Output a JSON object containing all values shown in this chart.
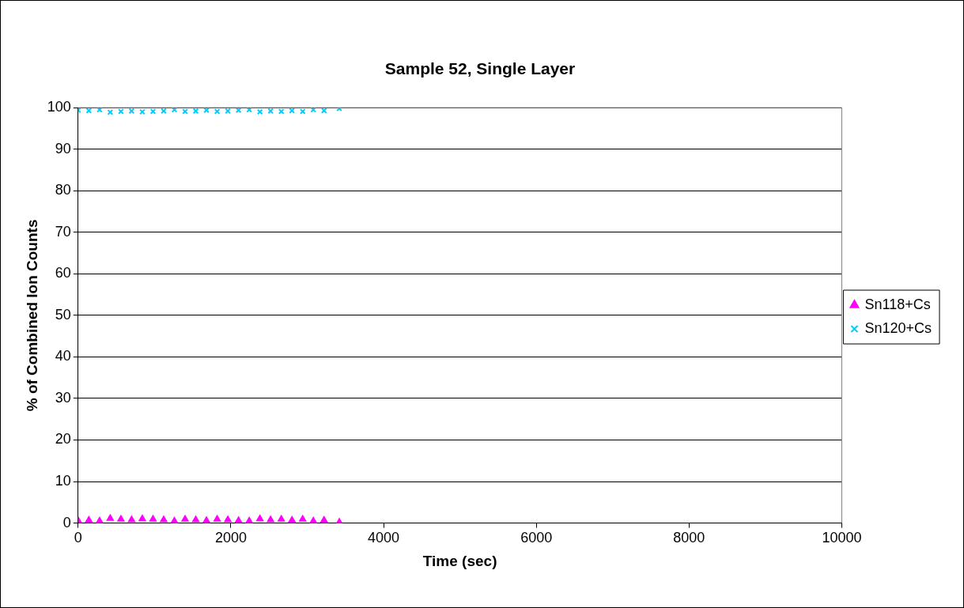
{
  "chart_data": {
    "type": "scatter",
    "title": "Sample 52, Single Layer",
    "xlabel": "Time (sec)",
    "ylabel": "% of Combined Ion Counts",
    "x": [
      0,
      140,
      280,
      420,
      560,
      700,
      840,
      980,
      1120,
      1260,
      1400,
      1540,
      1680,
      1820,
      1960,
      2100,
      2240,
      2380,
      2520,
      2660,
      2800,
      2940,
      3080,
      3220,
      3420
    ],
    "series": [
      {
        "name": "Sn118+Cs",
        "color": "#ff00ff",
        "marker": "triangle",
        "values": [
          0.6,
          0.7,
          0.5,
          1.1,
          0.9,
          0.8,
          1.0,
          0.9,
          0.8,
          0.5,
          0.9,
          0.8,
          0.6,
          0.9,
          0.8,
          0.6,
          0.5,
          1.0,
          0.8,
          0.9,
          0.7,
          0.9,
          0.5,
          0.7,
          0.2
        ]
      },
      {
        "name": "Sn120+Cs",
        "color": "#00ccff",
        "marker": "cross",
        "values": [
          99.4,
          99.3,
          99.5,
          98.9,
          99.1,
          99.2,
          99.0,
          99.1,
          99.2,
          99.5,
          99.1,
          99.2,
          99.4,
          99.1,
          99.2,
          99.4,
          99.5,
          99.0,
          99.2,
          99.1,
          99.3,
          99.1,
          99.5,
          99.3,
          99.8
        ]
      }
    ],
    "xlim": [
      0,
      10000
    ],
    "xticks": [
      0,
      2000,
      4000,
      6000,
      8000,
      10000
    ],
    "ylim": [
      0,
      100
    ],
    "yticks": [
      0,
      10,
      20,
      30,
      40,
      50,
      60,
      70,
      80,
      90,
      100
    ],
    "grid": "y",
    "legend": "right"
  }
}
